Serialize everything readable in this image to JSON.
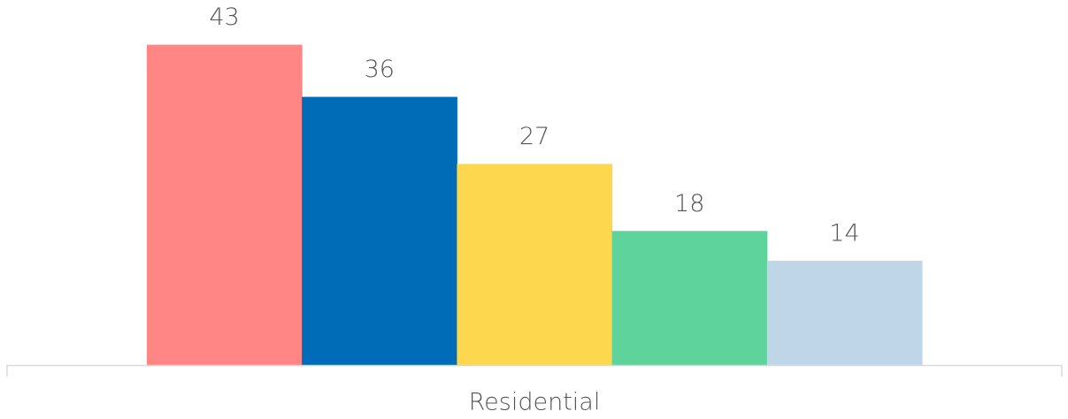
{
  "chart_data": {
    "type": "bar",
    "categories": [
      "Residential"
    ],
    "series": [
      {
        "color": "#ff8684",
        "values": [
          43
        ]
      },
      {
        "color": "#006bb7",
        "values": [
          36
        ]
      },
      {
        "color": "#fdd74e",
        "values": [
          27
        ]
      },
      {
        "color": "#5fd39c",
        "values": [
          18
        ]
      },
      {
        "color": "#bfd6e9",
        "values": [
          14
        ]
      }
    ],
    "ylim": [
      0,
      49
    ]
  }
}
